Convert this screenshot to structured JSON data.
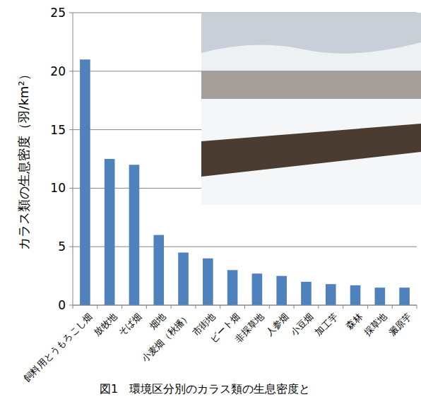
{
  "chart_data": {
    "type": "bar",
    "title": "図1　環境区分別のカラス類の生息密度と",
    "y_label": "カラス類の生息密度（羽/km²）",
    "categories": [
      "飼料用とうもろこし畑",
      "放牧地",
      "そば畑",
      "畑地",
      "小麦畑（秋播）",
      "市街地",
      "ビート畑",
      "非採草地",
      "人参畑",
      "小豆畑",
      "加工芋",
      "森林",
      "採草地",
      "澱原芋"
    ],
    "values": [
      21,
      12.5,
      12,
      6,
      4.5,
      4,
      3,
      2.7,
      2.5,
      2,
      1.8,
      1.7,
      1.5,
      1.5
    ],
    "color": "#4f81bd",
    "ylim": [
      0,
      25
    ],
    "yticks": [
      0,
      5,
      10,
      15,
      20,
      25
    ],
    "grid": true
  }
}
